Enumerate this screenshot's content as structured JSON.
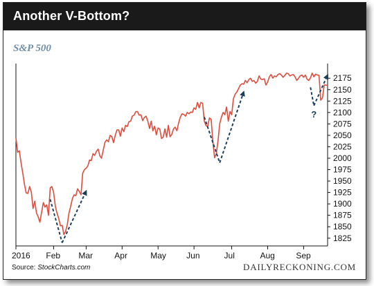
{
  "header": {
    "title": "Another V-Bottom?",
    "subtitle": "S&P 500"
  },
  "footer": {
    "source_prefix": "Source: ",
    "source_name": "StockCharts.com",
    "brand": "DAILYRECKONING.COM"
  },
  "colors": {
    "title_bar": "#1a1a1a",
    "line": "#e04b3c",
    "arrow": "#1b3f5c",
    "subtitle": "#6f8ea7"
  },
  "chart_data": {
    "type": "line",
    "title": "Another V-Bottom?",
    "subtitle": "S&P 500",
    "ylim": [
      1808,
      2198
    ],
    "xlim": [
      0,
      182
    ],
    "y_ticks": [
      1825,
      1850,
      1875,
      1900,
      1925,
      1950,
      1975,
      2000,
      2025,
      2050,
      2075,
      2100,
      2125,
      2150,
      2175
    ],
    "x_ticks": [
      {
        "label": "2016",
        "x": 0
      },
      {
        "label": "Feb",
        "x": 22
      },
      {
        "label": "Mar",
        "x": 41
      },
      {
        "label": "Apr",
        "x": 62
      },
      {
        "label": "May",
        "x": 83
      },
      {
        "label": "Jun",
        "x": 104
      },
      {
        "label": "Jul",
        "x": 126
      },
      {
        "label": "Aug",
        "x": 147
      },
      {
        "label": "Sep",
        "x": 168
      }
    ],
    "grid": false,
    "y_axis_side": "right",
    "series": [
      {
        "values": [
          2044,
          2013,
          2016,
          1990,
          1967,
          1942,
          1924,
          1923,
          1938,
          1925,
          1890,
          1906,
          1880,
          1872,
          1860,
          1882,
          1903,
          1893,
          1898,
          1875,
          1935,
          1938,
          1925,
          1895,
          1880,
          1868,
          1852,
          1853,
          1833,
          1840,
          1855,
          1880,
          1895,
          1912,
          1920,
          1918,
          1933,
          1927,
          1920,
          1967,
          1975,
          1978,
          1983,
          1996,
          1995,
          2010,
          2006,
          2015,
          2020,
          2005,
          2000,
          2018,
          2035,
          2040,
          2036,
          2050,
          2047,
          2034,
          2050,
          2062,
          2062,
          2048,
          2066,
          2058,
          2072,
          2069,
          2080,
          2081,
          2092,
          2094,
          2102,
          2102,
          2094,
          2095,
          2082,
          2089,
          2092,
          2081,
          2065,
          2081,
          2060,
          2070,
          2051,
          2066,
          2064,
          2043,
          2046,
          2064,
          2046,
          2072,
          2047,
          2052,
          2064,
          2068,
          2060,
          2077,
          2090,
          2097,
          2096,
          2092,
          2100,
          2097,
          2101,
          2100,
          2110,
          2107,
          2122,
          2110,
          2122,
          2120,
          2081,
          2071,
          2070,
          2088,
          2085,
          2037,
          2001,
          2010,
          2038,
          2075,
          2090,
          2100,
          2095,
          2112,
          2081,
          2102,
          2095,
          2130,
          2140,
          2145,
          2152,
          2160,
          2163,
          2162,
          2170,
          2165,
          2172,
          2175,
          2168,
          2170,
          2164,
          2168,
          2180,
          2173,
          2172,
          2174,
          2160,
          2167,
          2178,
          2183,
          2175,
          2180,
          2178,
          2183,
          2185,
          2182,
          2177,
          2181,
          2186,
          2185,
          2180,
          2182,
          2183,
          2178,
          2170,
          2175,
          2180,
          2182,
          2177,
          2182,
          2173,
          2170,
          2176,
          2186,
          2178,
          2184,
          2182,
          2181,
          2127,
          2132,
          2160,
          2160,
          2159
        ]
      }
    ],
    "annotations": [
      {
        "type": "v-bottom-arrows",
        "left": [
          20,
          1910
        ],
        "bottom": [
          27,
          1815
        ],
        "right": [
          41,
          1928
        ]
      },
      {
        "type": "v-bottom-arrows",
        "left": [
          110,
          2090
        ],
        "bottom": [
          119,
          1990
        ],
        "right": [
          133,
          2145
        ]
      },
      {
        "type": "v-bottom-arrows",
        "left": [
          172,
          2155
        ],
        "bottom": [
          174,
          2115
        ],
        "right": [
          182,
          2182
        ]
      },
      {
        "type": "label",
        "text": "?",
        "at": [
          174,
          2098
        ]
      }
    ]
  }
}
